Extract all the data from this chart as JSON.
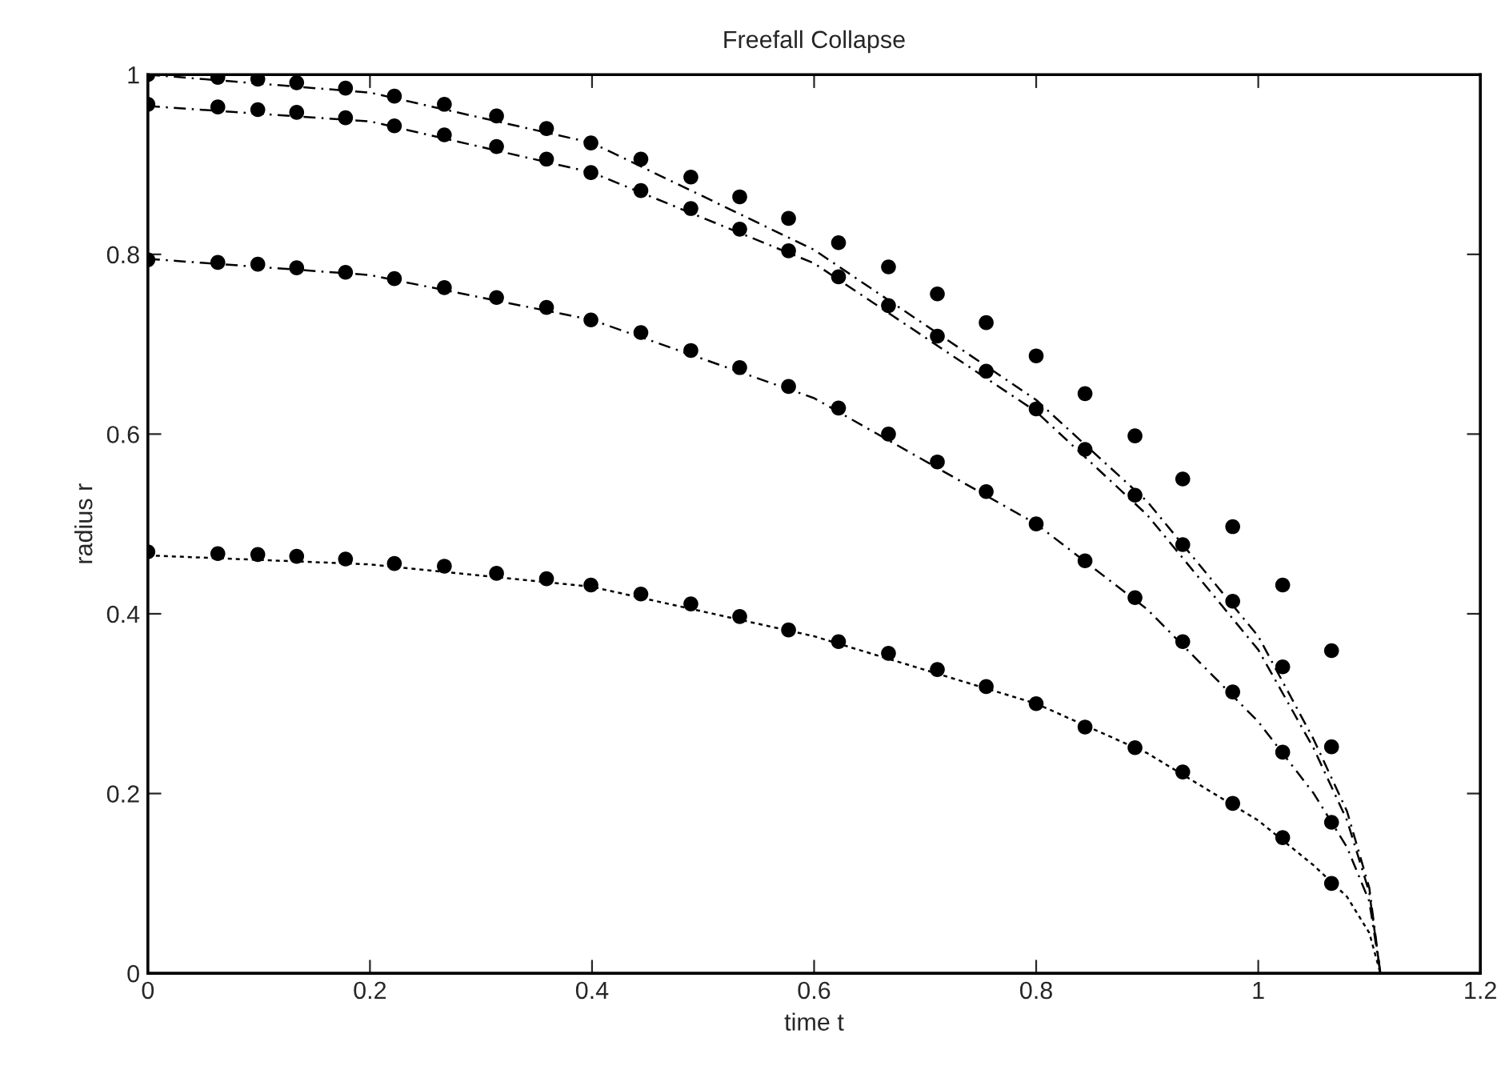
{
  "chart_data": {
    "type": "scatter",
    "title": "Freefall Collapse",
    "xlabel": "time t",
    "ylabel": "radius r",
    "xlim": [
      0,
      1.2
    ],
    "ylim": [
      0,
      1
    ],
    "xticks": [
      0,
      0.2,
      0.4,
      0.6,
      0.8,
      1,
      1.2
    ],
    "yticks": [
      0,
      0.2,
      0.4,
      0.6,
      0.8,
      1
    ],
    "grid": false,
    "legend": false,
    "marker": "circle",
    "x": [
      0,
      0.063,
      0.099,
      0.134,
      0.178,
      0.222,
      0.267,
      0.314,
      0.359,
      0.399,
      0.444,
      0.489,
      0.533,
      0.577,
      0.622,
      0.667,
      0.711,
      0.755,
      0.8,
      0.844,
      0.889,
      0.932,
      0.977,
      1.022,
      1.066
    ],
    "series": [
      {
        "color": "#000000",
        "values": [
          1.0,
          0.997,
          0.995,
          0.991,
          0.985,
          0.976,
          0.967,
          0.954,
          0.94,
          0.924,
          0.906,
          0.886,
          0.864,
          0.84,
          0.813,
          0.786,
          0.756,
          0.724,
          0.687,
          0.645,
          0.598,
          0.55,
          0.497,
          0.432,
          0.359
        ]
      },
      {
        "color": "#000000",
        "values": [
          0.967,
          0.964,
          0.961,
          0.958,
          0.952,
          0.943,
          0.933,
          0.92,
          0.906,
          0.891,
          0.871,
          0.851,
          0.828,
          0.804,
          0.775,
          0.743,
          0.709,
          0.67,
          0.628,
          0.583,
          0.532,
          0.477,
          0.414,
          0.341,
          0.252
        ]
      },
      {
        "color": "#000000",
        "values": [
          0.794,
          0.791,
          0.789,
          0.785,
          0.78,
          0.773,
          0.763,
          0.752,
          0.741,
          0.727,
          0.713,
          0.693,
          0.674,
          0.653,
          0.629,
          0.6,
          0.569,
          0.536,
          0.5,
          0.459,
          0.418,
          0.369,
          0.313,
          0.246,
          0.168
        ]
      },
      {
        "color": "#000000",
        "values": [
          0.469,
          0.467,
          0.466,
          0.464,
          0.461,
          0.456,
          0.453,
          0.445,
          0.439,
          0.432,
          0.422,
          0.411,
          0.397,
          0.382,
          0.369,
          0.356,
          0.338,
          0.319,
          0.3,
          0.274,
          0.251,
          0.224,
          0.189,
          0.151,
          0.1
        ]
      },
      {
        "type": "line",
        "marker": "none",
        "line_style": "dashed",
        "color": "#000000",
        "x": [
          0,
          0.2,
          0.4,
          0.6,
          0.8,
          0.9,
          1.0,
          1.05,
          1.08,
          1.1,
          1.11
        ],
        "values": [
          1.0,
          0.98,
          0.924,
          0.805,
          0.638,
          0.525,
          0.375,
          0.26,
          0.18,
          0.095,
          0
        ]
      },
      {
        "type": "line",
        "marker": "none",
        "line_style": "dashed",
        "color": "#000000",
        "x": [
          0,
          0.2,
          0.4,
          0.6,
          0.8,
          0.9,
          1.0,
          1.05,
          1.08,
          1.1,
          1.11
        ],
        "values": [
          0.965,
          0.948,
          0.891,
          0.79,
          0.625,
          0.51,
          0.36,
          0.25,
          0.17,
          0.09,
          0
        ]
      },
      {
        "type": "line",
        "marker": "none",
        "line_style": "dashed",
        "color": "#000000",
        "x": [
          0,
          0.2,
          0.4,
          0.6,
          0.8,
          0.9,
          1.0,
          1.05,
          1.08,
          1.1,
          1.11
        ],
        "values": [
          0.795,
          0.777,
          0.727,
          0.64,
          0.5,
          0.405,
          0.28,
          0.2,
          0.14,
          0.08,
          0
        ]
      },
      {
        "type": "line",
        "marker": "none",
        "line_style": "dotted",
        "color": "#000000",
        "x": [
          0,
          0.2,
          0.4,
          0.6,
          0.8,
          0.9,
          1.0,
          1.05,
          1.08,
          1.1,
          1.11
        ],
        "values": [
          0.465,
          0.455,
          0.43,
          0.375,
          0.3,
          0.245,
          0.17,
          0.12,
          0.085,
          0.045,
          0
        ]
      }
    ]
  }
}
